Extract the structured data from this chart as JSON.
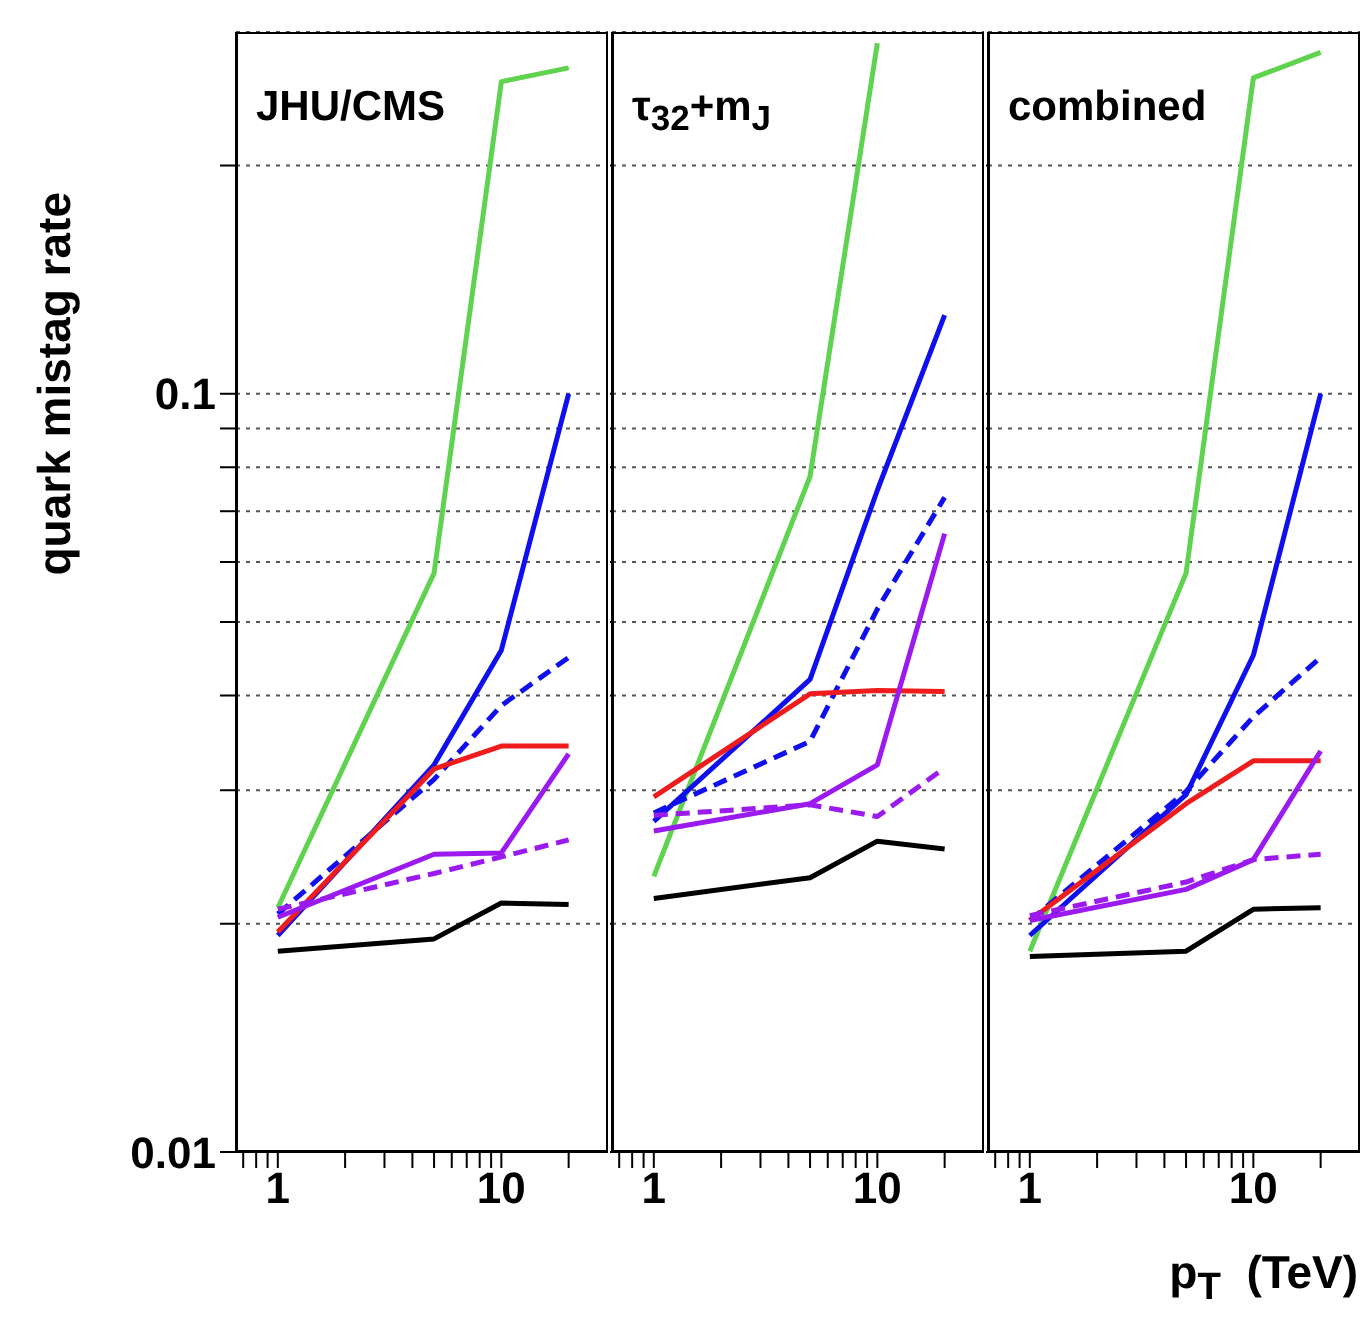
{
  "chart_data": [
    {
      "type": "line",
      "title": "JHU/CMS",
      "ylabel": "quark mistag rate",
      "log": "xy",
      "grid": "y",
      "tick_labels": true,
      "x": [
        1,
        5,
        10,
        20
      ],
      "xlim": [
        0.65,
        30
      ],
      "xticks": [
        {
          "value": 0.7,
          "label": null
        },
        {
          "value": 0.8,
          "label": null
        },
        {
          "value": 0.9,
          "label": null
        },
        {
          "value": 1,
          "label": "1"
        },
        {
          "value": 2,
          "label": null
        },
        {
          "value": 3,
          "label": null
        },
        {
          "value": 4,
          "label": null
        },
        {
          "value": 5,
          "label": null
        },
        {
          "value": 6,
          "label": null
        },
        {
          "value": 7,
          "label": null
        },
        {
          "value": 8,
          "label": null
        },
        {
          "value": 9,
          "label": null
        },
        {
          "value": 10,
          "label": "10"
        },
        {
          "value": 20,
          "label": null
        }
      ],
      "ylim": [
        0.01,
        0.3
      ],
      "yticks": [
        {
          "value": 0.01,
          "label": "0.01"
        },
        {
          "value": 0.02,
          "label": null
        },
        {
          "value": 0.03,
          "label": null
        },
        {
          "value": 0.04,
          "label": null
        },
        {
          "value": 0.05,
          "label": null
        },
        {
          "value": 0.06,
          "label": null
        },
        {
          "value": 0.07,
          "label": null
        },
        {
          "value": 0.08,
          "label": null
        },
        {
          "value": 0.09,
          "label": null
        },
        {
          "value": 0.1,
          "label": "0.1"
        },
        {
          "value": 0.2,
          "label": null
        }
      ],
      "series": [
        {
          "color": "#5fd34f",
          "values": [
            0.021,
            0.058,
            0.258,
            0.269
          ]
        },
        {
          "color": "#1010ee",
          "values": [
            0.0193,
            0.0324,
            0.0459,
            0.1
          ]
        },
        {
          "color": "#1010ee",
          "line_style": "dashed",
          "values": [
            0.0206,
            0.031,
            0.0388,
            0.0449
          ]
        },
        {
          "color": "#ee1c1c",
          "values": [
            0.0195,
            0.032,
            0.0343,
            0.0343
          ]
        },
        {
          "color": "#9a1aef",
          "values": [
            0.0204,
            0.0247,
            0.0248,
            0.0335
          ]
        },
        {
          "color": "#9a1aef",
          "line_style": "dashed",
          "values": [
            0.0209,
            0.0233,
            0.0245,
            0.0258
          ]
        },
        {
          "color": "#000000",
          "values": [
            0.0184,
            0.0191,
            0.0213,
            0.0212
          ]
        }
      ]
    },
    {
      "type": "line",
      "title": "τ$_{32}$+m$_{J}$",
      "log": "xy",
      "grid": "y",
      "tick_labels": "x",
      "x": [
        1,
        5,
        10,
        20
      ],
      "xlim": [
        0.65,
        30
      ],
      "xticks": [
        {
          "value": 0.7,
          "label": null
        },
        {
          "value": 0.8,
          "label": null
        },
        {
          "value": 0.9,
          "label": null
        },
        {
          "value": 1,
          "label": "1"
        },
        {
          "value": 2,
          "label": null
        },
        {
          "value": 3,
          "label": null
        },
        {
          "value": 4,
          "label": null
        },
        {
          "value": 5,
          "label": null
        },
        {
          "value": 6,
          "label": null
        },
        {
          "value": 7,
          "label": null
        },
        {
          "value": 8,
          "label": null
        },
        {
          "value": 9,
          "label": null
        },
        {
          "value": 10,
          "label": "10"
        },
        {
          "value": 20,
          "label": null
        }
      ],
      "ylim": [
        0.01,
        0.3
      ],
      "yticks": [
        {
          "value": 0.01,
          "label": null
        },
        {
          "value": 0.02,
          "label": null
        },
        {
          "value": 0.03,
          "label": null
        },
        {
          "value": 0.04,
          "label": null
        },
        {
          "value": 0.05,
          "label": null
        },
        {
          "value": 0.06,
          "label": null
        },
        {
          "value": 0.07,
          "label": null
        },
        {
          "value": 0.08,
          "label": null
        },
        {
          "value": 0.09,
          "label": null
        },
        {
          "value": 0.1,
          "label": null
        },
        {
          "value": 0.2,
          "label": null
        }
      ],
      "series": [
        {
          "color": "#5fd34f",
          "values": [
            0.0231,
            0.0778,
            0.29,
            null
          ]
        },
        {
          "color": "#1010ee",
          "values": [
            0.0273,
            0.042,
            0.0746,
            0.127
          ]
        },
        {
          "color": "#1010ee",
          "line_style": "dashed",
          "values": [
            0.028,
            0.0348,
            0.052,
            0.073
          ]
        },
        {
          "color": "#ee1c1c",
          "values": [
            0.0294,
            0.0402,
            0.0406,
            0.0405
          ]
        },
        {
          "color": "#9a1aef",
          "values": [
            0.0265,
            0.0288,
            0.0324,
            0.0654
          ]
        },
        {
          "color": "#9a1aef",
          "line_style": "dashed",
          "values": [
            0.0278,
            0.0287,
            0.0277,
            0.0321
          ]
        },
        {
          "color": "#000000",
          "values": [
            0.0216,
            0.023,
            0.0257,
            0.0251
          ]
        }
      ]
    },
    {
      "type": "line",
      "title": "combined",
      "xlabel": "p$_{T}$  (TeV)",
      "log": "xy",
      "grid": "y",
      "tick_labels": "x",
      "x": [
        1,
        5,
        10,
        20
      ],
      "xlim": [
        0.65,
        30
      ],
      "xticks": [
        {
          "value": 0.7,
          "label": null
        },
        {
          "value": 0.8,
          "label": null
        },
        {
          "value": 0.9,
          "label": null
        },
        {
          "value": 1,
          "label": "1"
        },
        {
          "value": 2,
          "label": null
        },
        {
          "value": 3,
          "label": null
        },
        {
          "value": 4,
          "label": null
        },
        {
          "value": 5,
          "label": null
        },
        {
          "value": 6,
          "label": null
        },
        {
          "value": 7,
          "label": null
        },
        {
          "value": 8,
          "label": null
        },
        {
          "value": 9,
          "label": null
        },
        {
          "value": 10,
          "label": "10"
        },
        {
          "value": 20,
          "label": null
        }
      ],
      "ylim": [
        0.01,
        0.3
      ],
      "yticks": [
        {
          "value": 0.01,
          "label": null
        },
        {
          "value": 0.02,
          "label": null
        },
        {
          "value": 0.03,
          "label": null
        },
        {
          "value": 0.04,
          "label": null
        },
        {
          "value": 0.05,
          "label": null
        },
        {
          "value": 0.06,
          "label": null
        },
        {
          "value": 0.07,
          "label": null
        },
        {
          "value": 0.08,
          "label": null
        },
        {
          "value": 0.09,
          "label": null
        },
        {
          "value": 0.1,
          "label": null
        },
        {
          "value": 0.2,
          "label": null
        }
      ],
      "series": [
        {
          "color": "#5fd34f",
          "values": [
            0.0184,
            0.058,
            0.261,
            0.282
          ]
        },
        {
          "color": "#1010ee",
          "values": [
            0.0193,
            0.0296,
            0.0452,
            0.1
          ]
        },
        {
          "color": "#1010ee",
          "line_style": "dashed",
          "values": [
            0.0202,
            0.0299,
            0.0375,
            0.0449
          ]
        },
        {
          "color": "#ee1c1c",
          "values": [
            0.0202,
            0.0288,
            0.0328,
            0.0328
          ]
        },
        {
          "color": "#9a1aef",
          "values": [
            0.0202,
            0.0222,
            0.0243,
            0.0338
          ]
        },
        {
          "color": "#9a1aef",
          "line_style": "dashed",
          "values": [
            0.0205,
            0.0227,
            0.0243,
            0.0247
          ]
        },
        {
          "color": "#000000",
          "values": [
            0.0181,
            0.0184,
            0.0209,
            0.021
          ]
        }
      ]
    }
  ]
}
